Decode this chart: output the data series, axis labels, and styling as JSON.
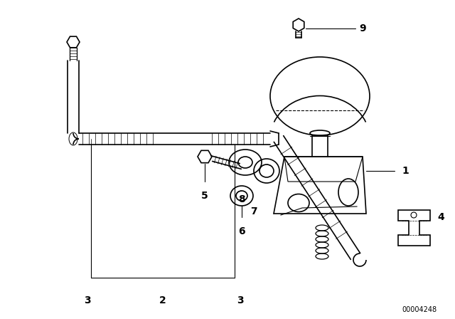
{
  "background_color": "#ffffff",
  "line_color": "#000000",
  "diagram_id": "00004248",
  "font_size_labels": 10,
  "font_size_id": 7,
  "line_width": 1.2
}
